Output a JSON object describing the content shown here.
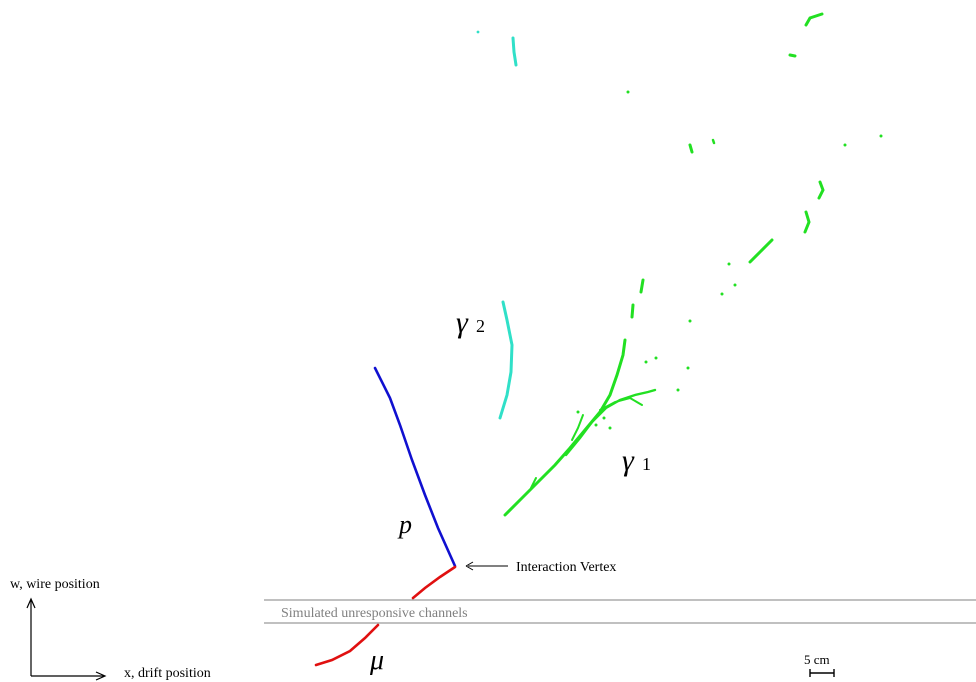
{
  "labels": {
    "gamma1": "γ",
    "gamma1_sub": "1",
    "gamma2": "γ",
    "gamma2_sub": "2",
    "proton": "p",
    "muon": "μ",
    "vertex": "Interaction Vertex",
    "unresponsive": "Simulated unresponsive channels",
    "w_axis": "w, wire position",
    "x_axis": "x, drift position",
    "scale": "5 cm"
  },
  "colors": {
    "proton": "#1010d0",
    "muon": "#e01010",
    "gamma1": "#22e022",
    "gamma2": "#30e0c8",
    "band": "#808080"
  }
}
